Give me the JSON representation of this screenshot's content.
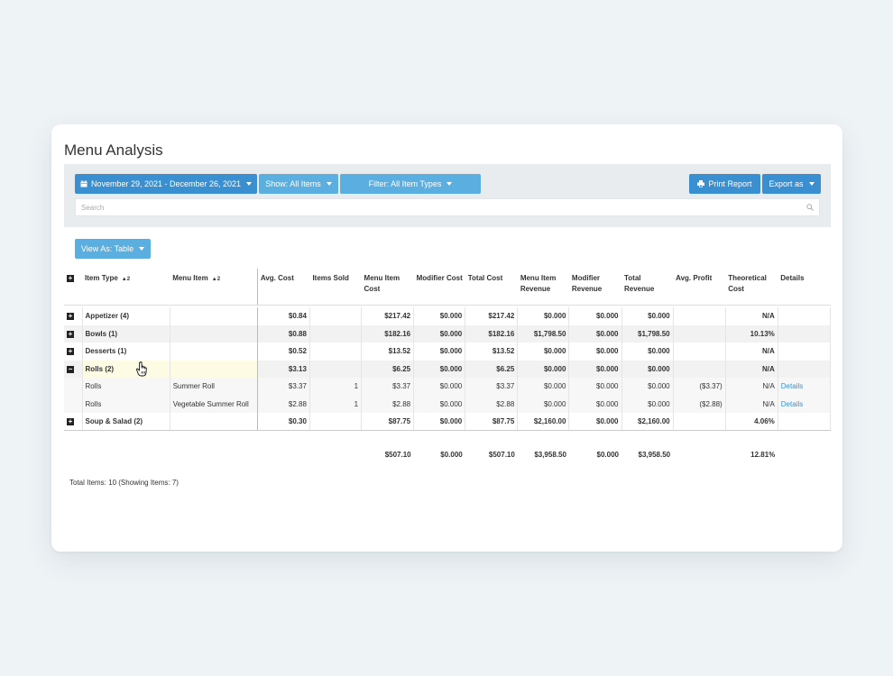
{
  "page": {
    "title": "Menu Analysis"
  },
  "toolbar": {
    "date_range": "November 29, 2021 - December 26, 2021",
    "show": "Show: All Items",
    "filter": "Filter: All Item Types",
    "print": "Print Report",
    "export": "Export as",
    "search_placeholder": "Search",
    "view_as": "View As: Table"
  },
  "table": {
    "headers": {
      "item_type": "Item Type",
      "menu_item": "Menu Item",
      "avg_cost": "Avg. Cost",
      "items_sold": "Items Sold",
      "menu_item_cost": "Menu Item Cost",
      "modifier_cost": "Modifier Cost",
      "total_cost": "Total Cost",
      "menu_item_revenue": "Menu Item Revenue",
      "modifier_revenue": "Modifier Revenue",
      "total_revenue": "Total Revenue",
      "avg_profit": "Avg. Profit",
      "theoretical_cost": "Theoretical Cost",
      "details": "Details"
    },
    "sort_indicator": "▲2",
    "rows": [
      {
        "type": "Appetizer (4)",
        "menu": "",
        "avg": "$0.84",
        "sold": "",
        "mic": "$217.42",
        "mc": "$0.000",
        "tc": "$217.42",
        "mir": "$0.000",
        "mr": "$0.000",
        "tr": "$0.000",
        "ap": "",
        "th": "N/A",
        "det": ""
      },
      {
        "type": "Bowls (1)",
        "menu": "",
        "avg": "$0.88",
        "sold": "",
        "mic": "$182.16",
        "mc": "$0.000",
        "tc": "$182.16",
        "mir": "$1,798.50",
        "mr": "$0.000",
        "tr": "$1,798.50",
        "ap": "",
        "th": "10.13%",
        "det": ""
      },
      {
        "type": "Desserts (1)",
        "menu": "",
        "avg": "$0.52",
        "sold": "",
        "mic": "$13.52",
        "mc": "$0.000",
        "tc": "$13.52",
        "mir": "$0.000",
        "mr": "$0.000",
        "tr": "$0.000",
        "ap": "",
        "th": "N/A",
        "det": ""
      },
      {
        "type": "Rolls (2)",
        "menu": "",
        "avg": "$3.13",
        "sold": "",
        "mic": "$6.25",
        "mc": "$0.000",
        "tc": "$6.25",
        "mir": "$0.000",
        "mr": "$0.000",
        "tr": "$0.000",
        "ap": "",
        "th": "N/A",
        "det": ""
      },
      {
        "type": "Rolls",
        "menu": "Summer Roll",
        "avg": "$3.37",
        "sold": "1",
        "mic": "$3.37",
        "mc": "$0.000",
        "tc": "$3.37",
        "mir": "$0.000",
        "mr": "$0.000",
        "tr": "$0.000",
        "ap": "($3.37)",
        "th": "N/A",
        "det": "Details"
      },
      {
        "type": "Rolls",
        "menu": "Vegetable Summer Roll",
        "avg": "$2.88",
        "sold": "1",
        "mic": "$2.88",
        "mc": "$0.000",
        "tc": "$2.88",
        "mir": "$0.000",
        "mr": "$0.000",
        "tr": "$0.000",
        "ap": "($2.88)",
        "th": "N/A",
        "det": "Details"
      },
      {
        "type": "Soup & Salad (2)",
        "menu": "",
        "avg": "$0.30",
        "sold": "",
        "mic": "$87.75",
        "mc": "$0.000",
        "tc": "$87.75",
        "mir": "$2,160.00",
        "mr": "$0.000",
        "tr": "$2,160.00",
        "ap": "",
        "th": "4.06%",
        "det": ""
      }
    ],
    "totals": {
      "mic": "$507.10",
      "mc": "$0.000",
      "tc": "$507.10",
      "mir": "$3,958.50",
      "mr": "$0.000",
      "tr": "$3,958.50",
      "th": "12.81%"
    },
    "footer": "Total Items: 10 (Showing Items: 7)"
  }
}
